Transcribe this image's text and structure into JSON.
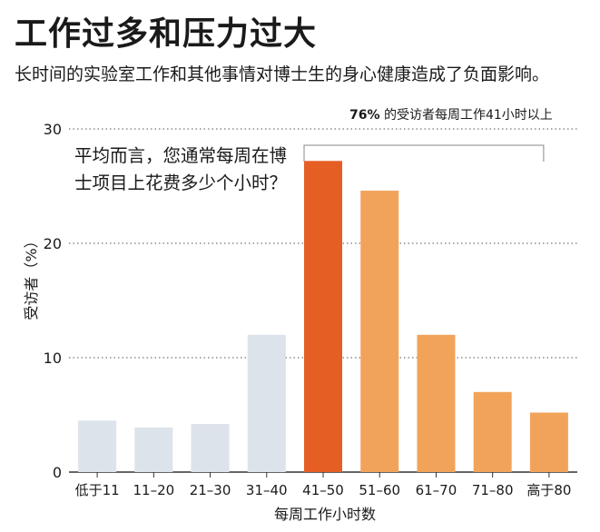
{
  "header": {
    "title": "工作过多和压力过大",
    "subtitle": "长时间的实验室工作和其他事情对博士生的身心健康造成了负面影响。"
  },
  "chart_data": {
    "type": "bar",
    "question": "平均而言，您通常每周在博士项目上花费多少个小时？",
    "annotation": {
      "percent": "76%",
      "text": "的受访者每周工作41小时以上"
    },
    "categories": [
      "低于11",
      "11–20",
      "21–30",
      "31–40",
      "41–50",
      "51–60",
      "61–70",
      "71–80",
      "高于80"
    ],
    "values": [
      4.5,
      3.9,
      4.2,
      12,
      27.2,
      24.6,
      12,
      7,
      5.2
    ],
    "bar_colors": [
      "#dde3ea",
      "#dde3ea",
      "#dde3ea",
      "#dde3ea",
      "#e55e24",
      "#f2a35a",
      "#f2a35a",
      "#f2a35a",
      "#f2a35a"
    ],
    "xlabel": "每周工作小时数",
    "ylabel": "受访者（%）",
    "ylim": [
      0,
      30
    ],
    "yticks": [
      0,
      10,
      20,
      30
    ],
    "grid": "dotted",
    "bracket_over": [
      "41–50",
      "高于80"
    ]
  }
}
